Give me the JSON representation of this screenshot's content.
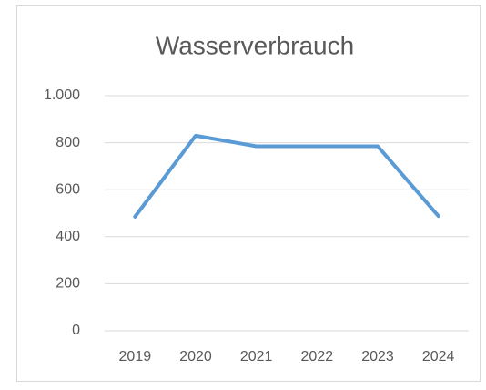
{
  "chart_data": {
    "type": "line",
    "title": "Wasserverbrauch",
    "categories": [
      "2019",
      "2020",
      "2021",
      "2022",
      "2023",
      "2024"
    ],
    "series": [
      {
        "name": "Wasserverbrauch",
        "color": "#5b9bd5",
        "values": [
          485,
          830,
          785,
          785,
          785,
          488
        ]
      }
    ],
    "ylim": [
      0,
      1000
    ],
    "yticks": [
      0,
      200,
      400,
      600,
      800,
      {
        "value": 1000,
        "label": "1.000"
      }
    ],
    "grid": true
  }
}
